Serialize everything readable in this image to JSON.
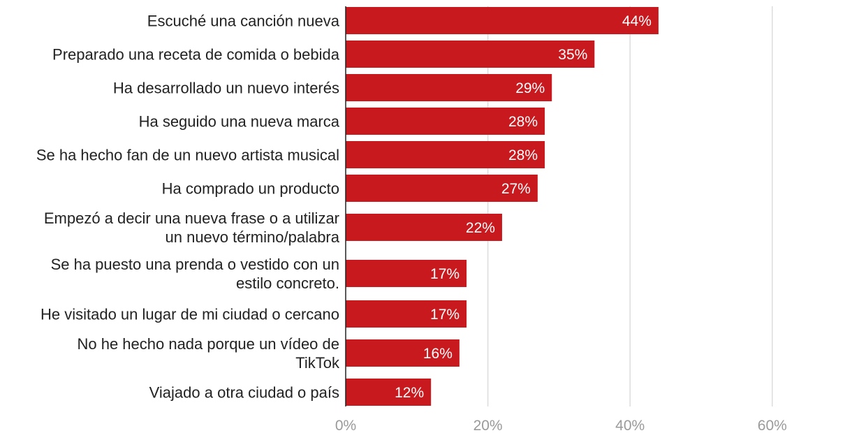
{
  "chart_data": {
    "type": "bar",
    "orientation": "horizontal",
    "title": "",
    "xlabel": "",
    "ylabel": "",
    "xlim": [
      0,
      60
    ],
    "xticks": [
      0,
      20,
      40,
      60
    ],
    "tick_suffix": "%",
    "grid": true,
    "bar_color": "#c8191e",
    "categories": [
      [
        "Escuché una canción nueva"
      ],
      [
        "Preparado una receta de comida o bebida"
      ],
      [
        "Ha desarrollado un nuevo interés"
      ],
      [
        "Ha seguido una nueva marca"
      ],
      [
        "Se ha hecho fan de un nuevo artista musical"
      ],
      [
        "Ha comprado un producto"
      ],
      [
        "Empezó a decir una nueva frase o a utilizar",
        "un nuevo término/palabra"
      ],
      [
        "Se ha puesto una prenda o vestido con un",
        "estilo concreto."
      ],
      [
        "He visitado un lugar de mi ciudad o cercano"
      ],
      [
        "No he hecho nada porque un vídeo de",
        "TikTok"
      ],
      [
        "Viajado a otra ciudad o país"
      ]
    ],
    "values": [
      44,
      35,
      29,
      28,
      28,
      27,
      22,
      17,
      17,
      16,
      12
    ]
  }
}
